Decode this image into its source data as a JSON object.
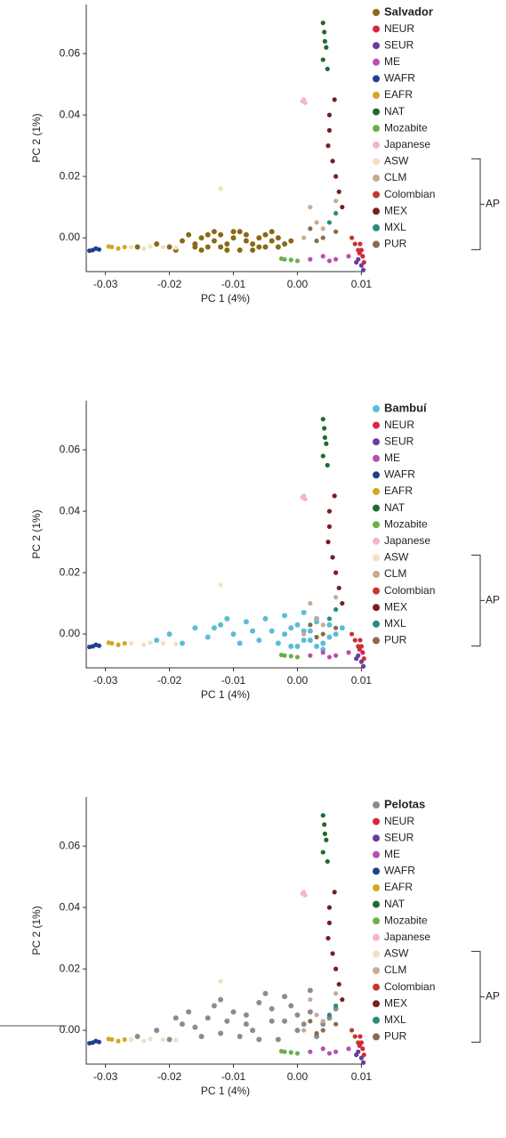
{
  "chart_data": [
    {
      "type": "scatter",
      "xlabel": "PC 1 (4%)",
      "ylabel": "PC 2 (1%)",
      "bracket_label": "AP",
      "xlim": [
        -0.033,
        0.0105
      ],
      "ylim": [
        -0.011,
        0.076
      ],
      "xticks": [
        -0.03,
        -0.02,
        -0.01,
        {
          "value": 0,
          "label": "0.00"
        },
        0.01
      ],
      "yticks": [
        {
          "value": 0,
          "label": "0.00"
        },
        0.02,
        0.04,
        0.06
      ],
      "series": [
        {
          "name": "Salvador",
          "color": "#8b6914",
          "x": [
            -0.025,
            -0.022,
            -0.02,
            -0.018,
            -0.016,
            -0.015,
            -0.014,
            -0.013,
            -0.012,
            -0.011,
            -0.01,
            -0.009,
            -0.008,
            -0.007,
            -0.006,
            -0.005,
            -0.004,
            -0.003,
            -0.002,
            -0.001,
            -0.019,
            -0.017,
            -0.015,
            -0.013,
            -0.011,
            -0.009,
            -0.007,
            -0.005,
            -0.012,
            -0.008,
            -0.01,
            -0.006,
            -0.014,
            -0.004,
            -0.016,
            -0.003
          ],
          "values": [
            -0.003,
            -0.002,
            -0.003,
            -0.001,
            -0.002,
            0.0,
            -0.003,
            -0.001,
            0.001,
            -0.002,
            0.0,
            -0.004,
            0.001,
            -0.002,
            0.0,
            -0.003,
            -0.001,
            0.0,
            -0.002,
            -0.001,
            -0.004,
            0.001,
            -0.004,
            0.002,
            -0.004,
            0.002,
            -0.004,
            0.001,
            -0.003,
            -0.001,
            0.002,
            -0.003,
            0.001,
            0.002,
            -0.003,
            -0.003
          ]
        },
        {
          "name": "NEUR",
          "color": "#d7263d",
          "x": [
            0.01,
            0.0102,
            0.0098,
            0.0104,
            0.0097
          ],
          "values": [
            -0.004,
            -0.006,
            -0.002,
            -0.008,
            -0.005
          ]
        },
        {
          "name": "SEUR",
          "color": "#6a3d9a",
          "x": [
            0.01,
            0.0095,
            0.0103,
            0.0092
          ],
          "values": [
            -0.009,
            -0.007,
            -0.0105,
            -0.008
          ]
        },
        {
          "name": "ME",
          "color": "#b84fb0",
          "x": [
            0.006,
            0.004,
            0.002,
            0.008,
            0.005
          ],
          "values": [
            -0.007,
            -0.006,
            -0.007,
            -0.006,
            -0.0075
          ]
        },
        {
          "name": "WAFR",
          "color": "#1f3f8f",
          "x": [
            -0.032,
            -0.0315,
            -0.0325,
            -0.031
          ],
          "values": [
            -0.004,
            -0.0035,
            -0.0042,
            -0.0038
          ]
        },
        {
          "name": "EAFR",
          "color": "#d4a62a",
          "x": [
            -0.029,
            -0.028,
            -0.0295,
            -0.027
          ],
          "values": [
            -0.003,
            -0.0035,
            -0.0028,
            -0.003
          ]
        },
        {
          "name": "NAT",
          "color": "#1e6b2e",
          "x": [
            0.004,
            0.0042,
            0.0045,
            0.004,
            0.0047,
            0.0043
          ],
          "values": [
            0.07,
            0.067,
            0.062,
            0.058,
            0.055,
            0.064
          ]
        },
        {
          "name": "Mozabite",
          "color": "#6ab04c",
          "x": [
            -0.002,
            -0.001,
            -0.0025,
            0.0
          ],
          "values": [
            -0.007,
            -0.0072,
            -0.0068,
            -0.0075
          ]
        },
        {
          "name": "Japanese",
          "color": "#f4b6c8",
          "x": [
            0.001,
            0.0012,
            0.0008
          ],
          "values": [
            0.045,
            0.044,
            0.0445
          ]
        },
        {
          "name": "ASW",
          "color": "#f3dfc1",
          "x": [
            -0.026,
            -0.024,
            -0.021,
            -0.019,
            -0.023,
            -0.012
          ],
          "values": [
            -0.003,
            -0.0035,
            -0.003,
            -0.0032,
            -0.0028,
            0.016
          ]
        },
        {
          "name": "CLM",
          "color": "#c9aa92",
          "x": [
            0.003,
            0.002,
            0.004,
            0.006,
            0.001
          ],
          "values": [
            0.005,
            0.01,
            0.003,
            0.012,
            0.0
          ]
        },
        {
          "name": "Colombian",
          "color": "#c0392b",
          "x": [
            0.009,
            0.0085,
            0.0095
          ],
          "values": [
            -0.002,
            0.0,
            -0.004
          ]
        },
        {
          "name": "MEX",
          "color": "#7b1e1e",
          "x": [
            0.005,
            0.0048,
            0.0055,
            0.006,
            0.0065,
            0.007,
            0.005,
            0.0058
          ],
          "values": [
            0.04,
            0.03,
            0.025,
            0.02,
            0.015,
            0.01,
            0.035,
            0.045
          ]
        },
        {
          "name": "MXL",
          "color": "#2a8c7a",
          "x": [
            0.006,
            0.005
          ],
          "values": [
            0.008,
            0.005
          ]
        },
        {
          "name": "PUR",
          "color": "#8a6b4e",
          "x": [
            0.004,
            0.003,
            0.006,
            0.002
          ],
          "values": [
            0.0,
            -0.001,
            0.002,
            0.003
          ]
        }
      ]
    },
    {
      "type": "scatter",
      "xlabel": "PC 1 (4%)",
      "ylabel": "PC 2 (1%)",
      "bracket_label": "AP",
      "xlim": [
        -0.033,
        0.0105
      ],
      "ylim": [
        -0.011,
        0.076
      ],
      "xticks": [
        -0.03,
        -0.02,
        -0.01,
        {
          "value": 0,
          "label": "0.00"
        },
        0.01
      ],
      "yticks": [
        {
          "value": 0,
          "label": "0.00"
        },
        0.02,
        0.04,
        0.06
      ],
      "series": [
        {
          "name": "Bambuí",
          "color": "#5bbcd6",
          "x": [
            -0.022,
            -0.02,
            -0.018,
            -0.016,
            -0.014,
            -0.012,
            -0.01,
            -0.008,
            -0.006,
            -0.005,
            -0.004,
            -0.003,
            -0.002,
            -0.001,
            0.0,
            0.001,
            0.002,
            0.003,
            0.004,
            0.005,
            0.006,
            0.007,
            -0.001,
            0.0,
            0.001,
            0.002,
            0.003,
            0.004,
            0.005,
            -0.009,
            -0.007,
            -0.011,
            -0.013,
            0.001,
            0.003,
            -0.002
          ],
          "values": [
            -0.002,
            0.0,
            -0.003,
            0.002,
            -0.001,
            0.003,
            0.0,
            0.004,
            -0.002,
            0.005,
            0.001,
            -0.003,
            0.006,
            0.002,
            -0.004,
            0.007,
            -0.002,
            0.004,
            -0.005,
            0.003,
            0.0,
            0.002,
            -0.004,
            0.003,
            -0.002,
            0.001,
            0.005,
            -0.003,
            -0.001,
            -0.003,
            0.001,
            0.005,
            0.002,
            0.001,
            -0.004,
            0.0
          ]
        },
        {
          "name": "NEUR",
          "color": "#d7263d",
          "x": [
            0.01,
            0.0102,
            0.0098,
            0.0104,
            0.0097
          ],
          "values": [
            -0.004,
            -0.006,
            -0.002,
            -0.008,
            -0.005
          ]
        },
        {
          "name": "SEUR",
          "color": "#6a3d9a",
          "x": [
            0.01,
            0.0095,
            0.0103,
            0.0092
          ],
          "values": [
            -0.009,
            -0.007,
            -0.0105,
            -0.008
          ]
        },
        {
          "name": "ME",
          "color": "#b84fb0",
          "x": [
            0.006,
            0.004,
            0.002,
            0.008,
            0.005
          ],
          "values": [
            -0.007,
            -0.006,
            -0.007,
            -0.006,
            -0.0075
          ]
        },
        {
          "name": "WAFR",
          "color": "#1f3f8f",
          "x": [
            -0.032,
            -0.0315,
            -0.0325,
            -0.031
          ],
          "values": [
            -0.004,
            -0.0035,
            -0.0042,
            -0.0038
          ]
        },
        {
          "name": "EAFR",
          "color": "#d4a62a",
          "x": [
            -0.029,
            -0.028,
            -0.0295,
            -0.027
          ],
          "values": [
            -0.003,
            -0.0035,
            -0.0028,
            -0.003
          ]
        },
        {
          "name": "NAT",
          "color": "#1e6b2e",
          "x": [
            0.004,
            0.0042,
            0.0045,
            0.004,
            0.0047,
            0.0043
          ],
          "values": [
            0.07,
            0.067,
            0.062,
            0.058,
            0.055,
            0.064
          ]
        },
        {
          "name": "Mozabite",
          "color": "#6ab04c",
          "x": [
            -0.002,
            -0.001,
            -0.0025,
            0.0
          ],
          "values": [
            -0.007,
            -0.0072,
            -0.0068,
            -0.0075
          ]
        },
        {
          "name": "Japanese",
          "color": "#f4b6c8",
          "x": [
            0.001,
            0.0012,
            0.0008
          ],
          "values": [
            0.045,
            0.044,
            0.0445
          ]
        },
        {
          "name": "ASW",
          "color": "#f3dfc1",
          "x": [
            -0.026,
            -0.024,
            -0.021,
            -0.019,
            -0.023,
            -0.012
          ],
          "values": [
            -0.003,
            -0.0035,
            -0.003,
            -0.0032,
            -0.0028,
            0.016
          ]
        },
        {
          "name": "CLM",
          "color": "#c9aa92",
          "x": [
            0.003,
            0.002,
            0.004,
            0.006,
            0.001
          ],
          "values": [
            0.005,
            0.01,
            0.003,
            0.012,
            0.0
          ]
        },
        {
          "name": "Colombian",
          "color": "#c0392b",
          "x": [
            0.009,
            0.0085,
            0.0095
          ],
          "values": [
            -0.002,
            0.0,
            -0.004
          ]
        },
        {
          "name": "MEX",
          "color": "#7b1e1e",
          "x": [
            0.005,
            0.0048,
            0.0055,
            0.006,
            0.0065,
            0.007,
            0.005,
            0.0058
          ],
          "values": [
            0.04,
            0.03,
            0.025,
            0.02,
            0.015,
            0.01,
            0.035,
            0.045
          ]
        },
        {
          "name": "MXL",
          "color": "#2a8c7a",
          "x": [
            0.006,
            0.005
          ],
          "values": [
            0.008,
            0.005
          ]
        },
        {
          "name": "PUR",
          "color": "#8a6b4e",
          "x": [
            0.004,
            0.003,
            0.006,
            0.002
          ],
          "values": [
            0.0,
            -0.001,
            0.002,
            0.003
          ]
        }
      ]
    },
    {
      "type": "scatter",
      "xlabel": "PC 1 (4%)",
      "ylabel": "PC 2 (1%)",
      "bracket_label": "AP",
      "xlim": [
        -0.033,
        0.0105
      ],
      "ylim": [
        -0.011,
        0.076
      ],
      "xticks": [
        -0.03,
        -0.02,
        -0.01,
        {
          "value": 0,
          "label": "0.00"
        },
        0.01
      ],
      "yticks": [
        {
          "value": 0,
          "label": "0.00"
        },
        0.02,
        0.04,
        0.06
      ],
      "series": [
        {
          "name": "Pelotas",
          "color": "#8c8c8c",
          "x": [
            -0.025,
            -0.022,
            -0.02,
            -0.018,
            -0.016,
            -0.014,
            -0.012,
            -0.01,
            -0.008,
            -0.006,
            -0.004,
            -0.002,
            0.0,
            0.002,
            0.004,
            0.006,
            -0.019,
            -0.015,
            -0.011,
            -0.007,
            -0.003,
            0.001,
            0.003,
            0.005,
            -0.013,
            -0.009,
            -0.005,
            -0.001,
            -0.017,
            -0.012,
            -0.008,
            -0.004,
            0.0,
            0.002,
            -0.006,
            -0.002
          ],
          "values": [
            -0.002,
            0.0,
            -0.003,
            0.002,
            0.001,
            0.004,
            -0.001,
            0.006,
            0.002,
            0.009,
            0.003,
            0.011,
            0.005,
            0.013,
            0.002,
            0.007,
            0.004,
            -0.002,
            0.003,
            0.0,
            -0.003,
            0.002,
            -0.002,
            0.004,
            0.008,
            -0.002,
            0.012,
            0.008,
            0.006,
            0.01,
            0.005,
            0.007,
            0.0,
            0.006,
            -0.003,
            0.003
          ]
        },
        {
          "name": "NEUR",
          "color": "#d7263d",
          "x": [
            0.01,
            0.0102,
            0.0098,
            0.0104,
            0.0097
          ],
          "values": [
            -0.004,
            -0.006,
            -0.002,
            -0.008,
            -0.005
          ]
        },
        {
          "name": "SEUR",
          "color": "#6a3d9a",
          "x": [
            0.01,
            0.0095,
            0.0103,
            0.0092
          ],
          "values": [
            -0.009,
            -0.007,
            -0.0105,
            -0.008
          ]
        },
        {
          "name": "ME",
          "color": "#b84fb0",
          "x": [
            0.006,
            0.004,
            0.002,
            0.008,
            0.005
          ],
          "values": [
            -0.007,
            -0.006,
            -0.007,
            -0.006,
            -0.0075
          ]
        },
        {
          "name": "WAFR",
          "color": "#1f3f8f",
          "x": [
            -0.032,
            -0.0315,
            -0.0325,
            -0.031
          ],
          "values": [
            -0.004,
            -0.0035,
            -0.0042,
            -0.0038
          ]
        },
        {
          "name": "EAFR",
          "color": "#d4a62a",
          "x": [
            -0.029,
            -0.028,
            -0.0295,
            -0.027
          ],
          "values": [
            -0.003,
            -0.0035,
            -0.0028,
            -0.003
          ]
        },
        {
          "name": "NAT",
          "color": "#1e6b2e",
          "x": [
            0.004,
            0.0042,
            0.0045,
            0.004,
            0.0047,
            0.0043
          ],
          "values": [
            0.07,
            0.067,
            0.062,
            0.058,
            0.055,
            0.064
          ]
        },
        {
          "name": "Mozabite",
          "color": "#6ab04c",
          "x": [
            -0.002,
            -0.001,
            -0.0025,
            0.0
          ],
          "values": [
            -0.007,
            -0.0072,
            -0.0068,
            -0.0075
          ]
        },
        {
          "name": "Japanese",
          "color": "#f4b6c8",
          "x": [
            0.001,
            0.0012,
            0.0008
          ],
          "values": [
            0.045,
            0.044,
            0.0445
          ]
        },
        {
          "name": "ASW",
          "color": "#f3dfc1",
          "x": [
            -0.026,
            -0.024,
            -0.021,
            -0.019,
            -0.023,
            -0.012
          ],
          "values": [
            -0.003,
            -0.0035,
            -0.003,
            -0.0032,
            -0.0028,
            0.016
          ]
        },
        {
          "name": "CLM",
          "color": "#c9aa92",
          "x": [
            0.003,
            0.002,
            0.004,
            0.006,
            0.001
          ],
          "values": [
            0.005,
            0.01,
            0.003,
            0.012,
            0.0
          ]
        },
        {
          "name": "Colombian",
          "color": "#c0392b",
          "x": [
            0.009,
            0.0085,
            0.0095
          ],
          "values": [
            -0.002,
            0.0,
            -0.004
          ]
        },
        {
          "name": "MEX",
          "color": "#7b1e1e",
          "x": [
            0.005,
            0.0048,
            0.0055,
            0.006,
            0.0065,
            0.007,
            0.005,
            0.0058
          ],
          "values": [
            0.04,
            0.03,
            0.025,
            0.02,
            0.015,
            0.01,
            0.035,
            0.045
          ]
        },
        {
          "name": "MXL",
          "color": "#2a8c7a",
          "x": [
            0.006,
            0.005
          ],
          "values": [
            0.008,
            0.005
          ]
        },
        {
          "name": "PUR",
          "color": "#8a6b4e",
          "x": [
            0.004,
            0.003,
            0.006,
            0.002
          ],
          "values": [
            0.0,
            -0.001,
            0.002,
            0.003
          ]
        }
      ]
    }
  ]
}
